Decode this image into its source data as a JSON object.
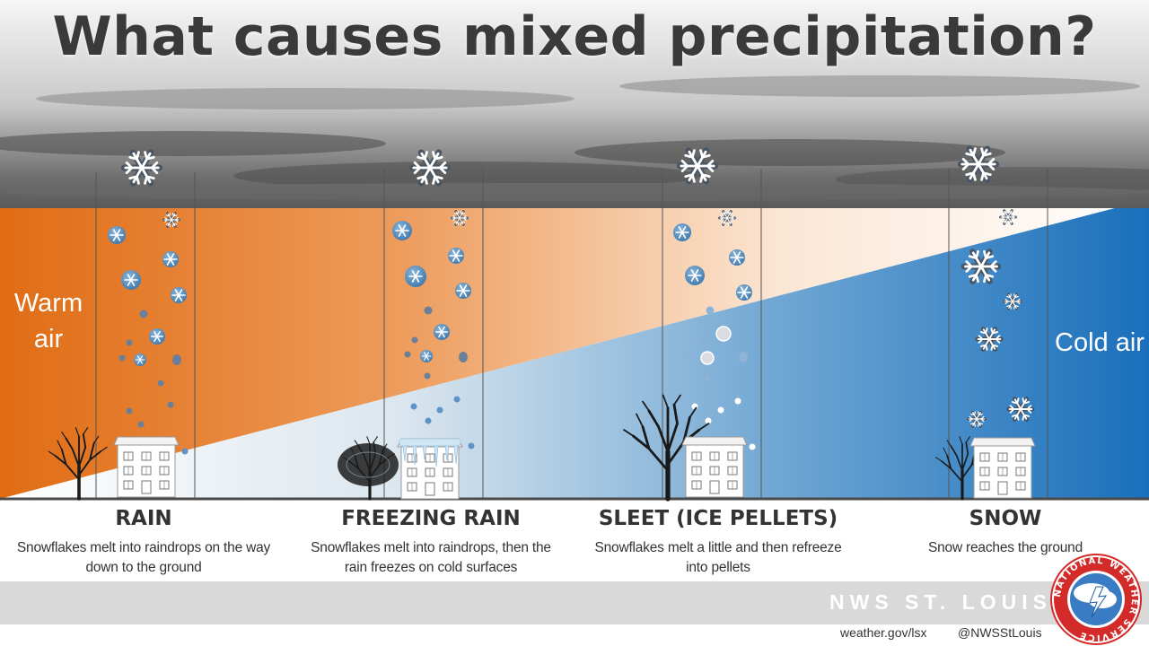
{
  "title": "What causes mixed precipitation?",
  "air": {
    "warm": "Warm air",
    "cold": "Cold air"
  },
  "categories": [
    {
      "name": "RAIN",
      "description": "Snowflakes melt into raindrops on the way down to the ground"
    },
    {
      "name": "FREEZING RAIN",
      "description": "Snowflakes melt into raindrops, then the rain freezes on cold surfaces"
    },
    {
      "name": "SLEET (ICE PELLETS)",
      "description": "Snowflakes melt a little  and then refreeze into pellets"
    },
    {
      "name": "SNOW",
      "description": "Snow reaches the ground"
    }
  ],
  "footer": {
    "brand": "NWS ST. LOUIS",
    "website": "weather.gov/lsx",
    "twitter": "@NWSStLouis"
  },
  "logo": {
    "ring_text": "NATIONAL WEATHER SERVICE"
  },
  "colors": {
    "warm": "#e3711c",
    "warm_light": "#fbe7d6",
    "cold_light": "#dfe8ef",
    "cold": "#1f72b8",
    "text": "#333333",
    "footer_bar": "#d9d9d9",
    "logo_ring": "#d32a2a"
  }
}
